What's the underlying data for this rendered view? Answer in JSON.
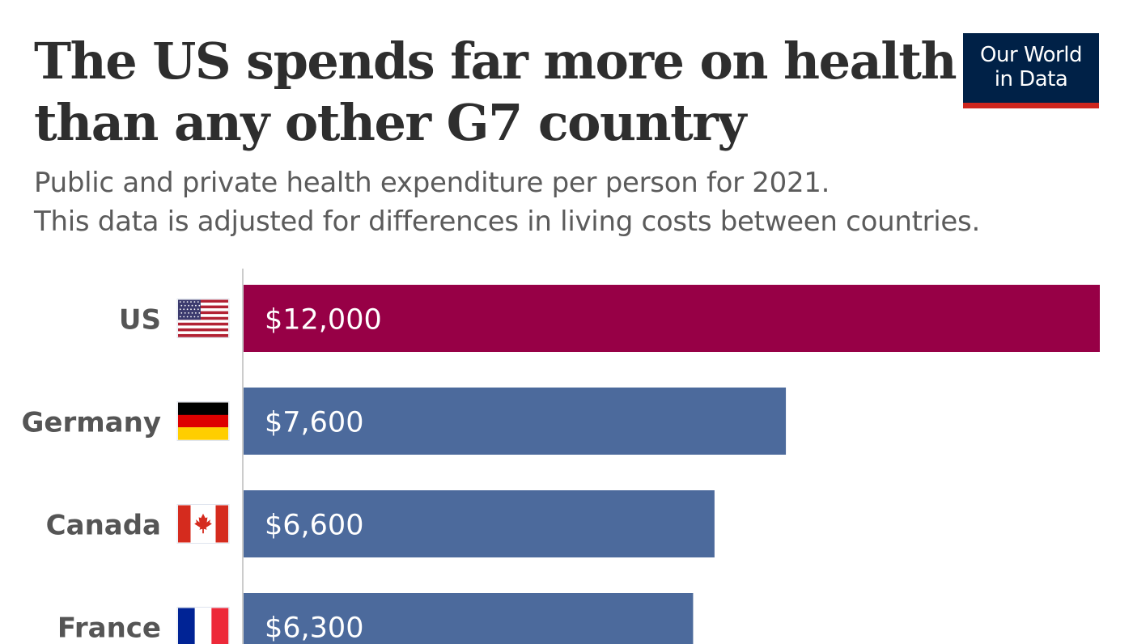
{
  "header": {
    "title_lines": [
      "The US spends far more on health",
      "than any other G7 country"
    ],
    "subtitle_lines": [
      "Public and private health expenditure per person for 2021.",
      "This data is adjusted for differences in living costs between countries."
    ],
    "logo_lines": [
      "Our World",
      "in Data"
    ]
  },
  "colors": {
    "highlight_bar": "#970046",
    "default_bar": "#4c6a9c",
    "logo_bg": "#002147",
    "logo_accent": "#ce261e",
    "label_text": "#555555",
    "axis_line": "#bbbbbb"
  },
  "chart_data": {
    "type": "bar",
    "orientation": "horizontal",
    "title": "The US spends far more on health than any other G7 country",
    "subtitle": "Public and private health expenditure per person for 2021. This data is adjusted for differences in living costs between countries.",
    "xlabel": "",
    "ylabel": "",
    "xlim": [
      0,
      12000
    ],
    "grid": false,
    "categories": [
      "US",
      "Germany",
      "Canada",
      "France"
    ],
    "flags": [
      "us-flag",
      "germany-flag",
      "canada-flag",
      "france-flag"
    ],
    "values": [
      12000,
      7600,
      6600,
      6300
    ],
    "data_labels": [
      "$12,000",
      "$7,600",
      "$6,600",
      "$6,300"
    ],
    "highlight": "US"
  }
}
